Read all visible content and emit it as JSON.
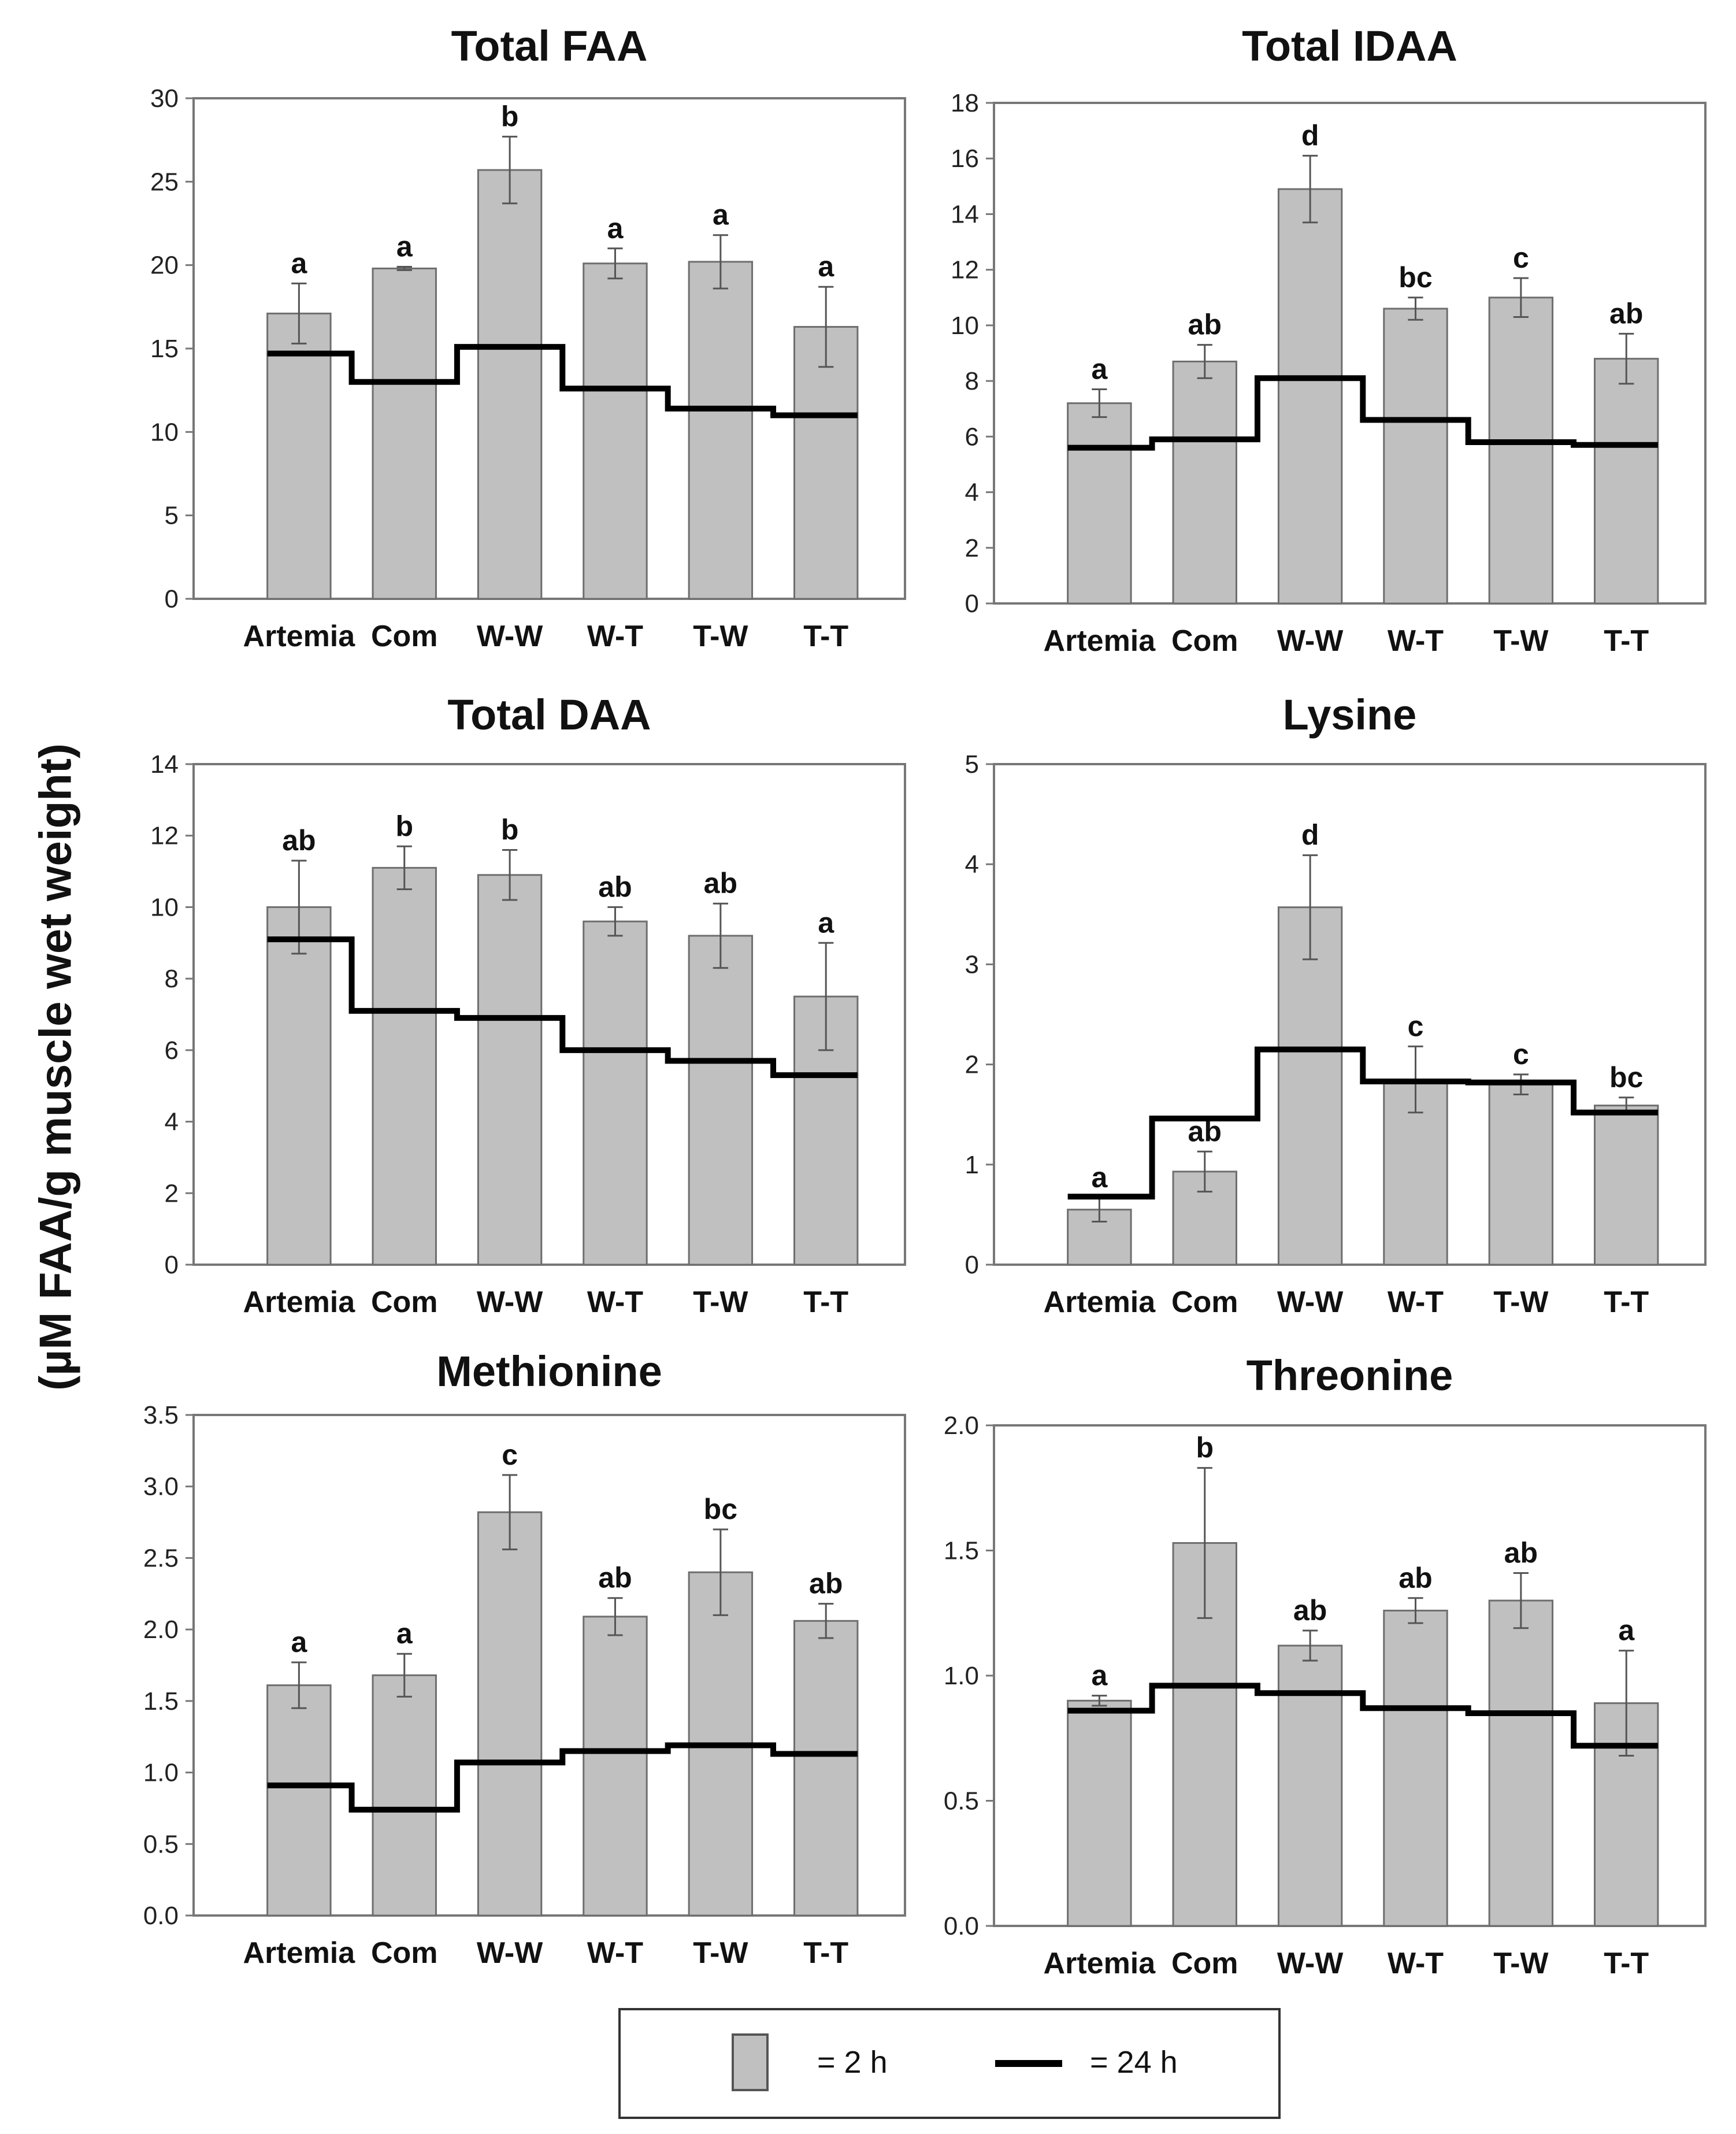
{
  "ylabel": "(µM FAA/g muscle wet weight)",
  "legend": {
    "bar_label": "= 2 h",
    "line_label": "= 24 h"
  },
  "colors": {
    "bar_fill": "#c0c0c0",
    "bar_stroke": "#6e6e6e",
    "line": "#000000",
    "frame": "#777777"
  },
  "chart_data": [
    {
      "type": "bar",
      "title": "Total FAA",
      "categories": [
        "Artemia",
        "Com",
        "W-W",
        "W-T",
        "T-W",
        "T-T"
      ],
      "ylim": [
        0,
        30
      ],
      "yticks": [
        "0",
        "5",
        "10",
        "15",
        "20",
        "25",
        "30"
      ],
      "series": [
        {
          "name": "2 h",
          "values": [
            17.1,
            19.8,
            25.7,
            20.1,
            20.2,
            16.3
          ],
          "errors": [
            1.8,
            0.1,
            2.0,
            0.9,
            1.6,
            2.4
          ]
        },
        {
          "name": "24 h",
          "values": [
            14.7,
            13.0,
            15.1,
            12.6,
            11.4,
            11.0
          ]
        }
      ],
      "significance": [
        "a",
        "a",
        "b",
        "a",
        "a",
        "a"
      ]
    },
    {
      "type": "bar",
      "title": "Total IDAA",
      "categories": [
        "Artemia",
        "Com",
        "W-W",
        "W-T",
        "T-W",
        "T-T"
      ],
      "ylim": [
        0,
        18
      ],
      "yticks": [
        "0",
        "2",
        "4",
        "6",
        "8",
        "10",
        "12",
        "14",
        "16",
        "18"
      ],
      "series": [
        {
          "name": "2 h",
          "values": [
            7.2,
            8.7,
            14.9,
            10.6,
            11.0,
            8.8
          ],
          "errors": [
            0.5,
            0.6,
            1.2,
            0.4,
            0.7,
            0.9
          ]
        },
        {
          "name": "24 h",
          "values": [
            5.6,
            5.9,
            8.1,
            6.6,
            5.8,
            5.7
          ]
        }
      ],
      "significance": [
        "a",
        "ab",
        "d",
        "bc",
        "c",
        "ab"
      ]
    },
    {
      "type": "bar",
      "title": "Total DAA",
      "categories": [
        "Artemia",
        "Com",
        "W-W",
        "W-T",
        "T-W",
        "T-T"
      ],
      "ylim": [
        0,
        14
      ],
      "yticks": [
        "0",
        "2",
        "4",
        "6",
        "8",
        "10",
        "12",
        "14"
      ],
      "series": [
        {
          "name": "2 h",
          "values": [
            10.0,
            11.1,
            10.9,
            9.6,
            9.2,
            7.5
          ],
          "errors": [
            1.3,
            0.6,
            0.7,
            0.4,
            0.9,
            1.5
          ]
        },
        {
          "name": "24 h",
          "values": [
            9.1,
            7.1,
            6.9,
            6.0,
            5.7,
            5.3
          ]
        }
      ],
      "significance": [
        "ab",
        "b",
        "b",
        "ab",
        "ab",
        "a"
      ]
    },
    {
      "type": "bar",
      "title": "Lysine",
      "categories": [
        "Artemia",
        "Com",
        "W-W",
        "W-T",
        "T-W",
        "T-T"
      ],
      "ylim": [
        0,
        5
      ],
      "yticks": [
        "0",
        "1",
        "2",
        "3",
        "4",
        "5"
      ],
      "series": [
        {
          "name": "2 h",
          "values": [
            0.55,
            0.93,
            3.57,
            1.85,
            1.8,
            1.59
          ],
          "errors": [
            0.12,
            0.2,
            0.52,
            0.33,
            0.1,
            0.08
          ]
        },
        {
          "name": "24 h",
          "values": [
            0.68,
            1.46,
            2.15,
            1.83,
            1.82,
            1.52
          ]
        }
      ],
      "significance": [
        "a",
        "ab",
        "d",
        "c",
        "c",
        "bc"
      ]
    },
    {
      "type": "bar",
      "title": "Methionine",
      "categories": [
        "Artemia",
        "Com",
        "W-W",
        "W-T",
        "T-W",
        "T-T"
      ],
      "ylim": [
        0,
        3.5
      ],
      "yticks": [
        "0.0",
        "0.5",
        "1.0",
        "1.5",
        "2.0",
        "2.5",
        "3.0",
        "3.5"
      ],
      "series": [
        {
          "name": "2 h",
          "values": [
            1.61,
            1.68,
            2.82,
            2.09,
            2.4,
            2.06
          ],
          "errors": [
            0.16,
            0.15,
            0.26,
            0.13,
            0.3,
            0.12
          ]
        },
        {
          "name": "24 h",
          "values": [
            0.91,
            0.74,
            1.07,
            1.15,
            1.19,
            1.13
          ]
        }
      ],
      "significance": [
        "a",
        "a",
        "c",
        "ab",
        "bc",
        "ab"
      ]
    },
    {
      "type": "bar",
      "title": "Threonine",
      "categories": [
        "Artemia",
        "Com",
        "W-W",
        "W-T",
        "T-W",
        "T-T"
      ],
      "ylim": [
        0,
        2.0
      ],
      "yticks": [
        "0.0",
        "0.5",
        "1.0",
        "1.5",
        "2.0"
      ],
      "series": [
        {
          "name": "2 h",
          "values": [
            0.9,
            1.53,
            1.12,
            1.26,
            1.3,
            0.89
          ],
          "errors": [
            0.02,
            0.3,
            0.06,
            0.05,
            0.11,
            0.21
          ]
        },
        {
          "name": "24 h",
          "values": [
            0.86,
            0.96,
            0.93,
            0.87,
            0.85,
            0.72
          ]
        }
      ],
      "significance": [
        "a",
        "b",
        "ab",
        "ab",
        "ab",
        "a"
      ]
    }
  ]
}
